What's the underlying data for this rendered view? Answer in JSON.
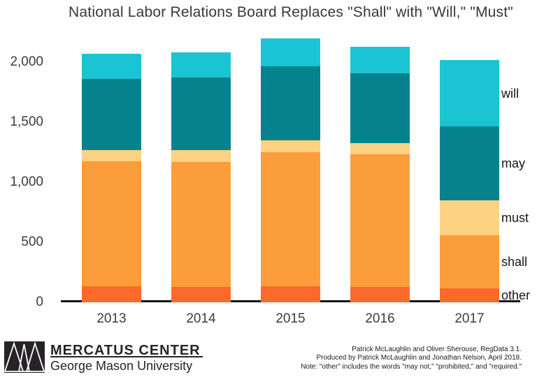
{
  "title": "National Labor Relations Board Replaces \"Shall\" with \"Will,\" \"Must\"",
  "chart_data": {
    "type": "bar",
    "stacked": true,
    "title": "National Labor Relations Board Replaces \"Shall\" with \"Will,\" \"Must\"",
    "xlabel": "",
    "ylabel": "",
    "categories": [
      "2013",
      "2014",
      "2015",
      "2016",
      "2017"
    ],
    "series": [
      {
        "name": "other",
        "color": "#fb6a2c",
        "values": [
          135,
          130,
          135,
          130,
          115
        ]
      },
      {
        "name": "shall",
        "color": "#fc9d3b",
        "values": [
          1040,
          1040,
          1115,
          1105,
          445
        ]
      },
      {
        "name": "must",
        "color": "#fed283",
        "values": [
          95,
          100,
          100,
          95,
          290
        ]
      },
      {
        "name": "may",
        "color": "#05828e",
        "values": [
          590,
          605,
          615,
          580,
          615
        ]
      },
      {
        "name": "will",
        "color": "#1bc4d2",
        "values": [
          215,
          210,
          235,
          220,
          555
        ]
      }
    ],
    "totals": [
      2075,
      2085,
      2200,
      2130,
      2020
    ],
    "ylim": [
      0,
      2200
    ],
    "y_ticks": {
      "values": [
        0,
        500,
        1000,
        1500,
        2000
      ],
      "labels": [
        "0",
        "500",
        "1,000",
        "1,500",
        "2,000"
      ]
    },
    "grid": false,
    "legend_position": "right-of-last-bar",
    "legend_labels_top_to_bottom": [
      "will",
      "may",
      "must",
      "shall",
      "other"
    ]
  },
  "footer": {
    "logo": {
      "icon": "mercatus-triangles-logo",
      "org": "MERCATUS CENTER",
      "sub": "George Mason University"
    },
    "credits": [
      "Patrick McLaughlin and Oliver Sherouse, RegData 3.1.",
      "Produced by Patrick McLaughlin and Jonathan Nelson, April 2018.",
      "Note: \"other\" includes the words \"may not,\" \"prohibited,\" and \"required.\""
    ]
  }
}
